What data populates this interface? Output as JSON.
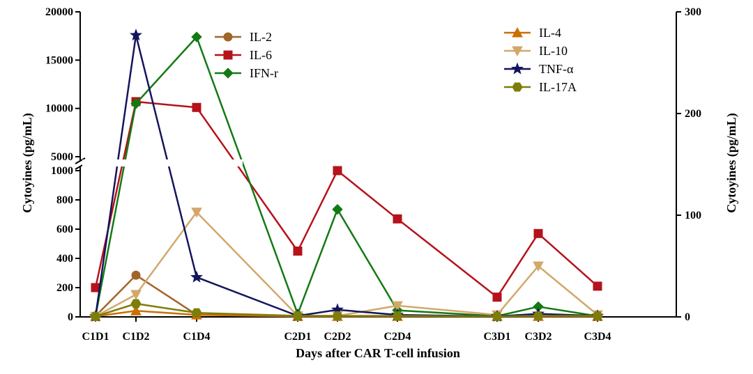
{
  "chart_data": {
    "type": "line",
    "xlabel": "Days after CAR T-cell infusion",
    "ylabel_left": "Cytoyines (pg/mL)",
    "ylabel_right": "Cytoyines (pg/mL)",
    "categories": [
      "C1D1",
      "C1D2",
      "C1D4",
      "C2D1",
      "C2D2",
      "C2D4",
      "C3D1",
      "C3D2",
      "C3D4"
    ],
    "left_axis": {
      "lower_segment": {
        "range": [
          0,
          1000
        ],
        "ticks": [
          0,
          200,
          400,
          600,
          800,
          1000
        ]
      },
      "upper_segment": {
        "range": [
          5000,
          20000
        ],
        "ticks": [
          5000,
          10000,
          15000,
          20000
        ]
      },
      "break_between": [
        1000,
        5000
      ]
    },
    "right_axis": {
      "range": [
        0,
        300
      ],
      "ticks": [
        0,
        100,
        200,
        300
      ]
    },
    "legend_left": [
      "IL-2",
      "IL-6",
      "IFN-r"
    ],
    "legend_right": [
      "IL-4",
      "IL-10",
      "TNF-α",
      "IL-17A"
    ],
    "grid": false,
    "series": [
      {
        "name": "IL-2",
        "axis": "left",
        "color": "#a0652a",
        "marker": "circle",
        "values": [
          5,
          285,
          15,
          5,
          5,
          5,
          5,
          5,
          5
        ]
      },
      {
        "name": "IL-6",
        "axis": "left",
        "color": "#b5121b",
        "marker": "square",
        "values": [
          200,
          10700,
          10100,
          450,
          1000,
          670,
          135,
          570,
          210
        ]
      },
      {
        "name": "IFN-r",
        "axis": "left",
        "color": "#137a13",
        "marker": "diamond",
        "values": [
          5,
          10500,
          17400,
          20,
          735,
          45,
          5,
          70,
          5
        ]
      },
      {
        "name": "IL-4",
        "axis": "right",
        "color": "#cc6e00",
        "marker": "triangle-up",
        "values": [
          0.5,
          6,
          2,
          0.5,
          0.5,
          0.5,
          0.5,
          0.5,
          0.5
        ]
      },
      {
        "name": "IL-10",
        "axis": "right",
        "color": "#d2a86a",
        "marker": "triangle-down",
        "values": [
          0.5,
          22,
          103,
          1,
          1,
          11,
          2,
          50,
          2
        ]
      },
      {
        "name": "TNF-α",
        "axis": "right",
        "color": "#14145e",
        "marker": "star",
        "values": [
          0.5,
          277,
          39,
          1,
          7,
          2,
          0.5,
          3,
          1
        ]
      },
      {
        "name": "IL-17A",
        "axis": "right",
        "color": "#7d7d0a",
        "marker": "hexagon",
        "values": [
          0.5,
          13,
          4,
          1,
          1,
          1,
          0.5,
          1,
          1
        ]
      }
    ]
  }
}
